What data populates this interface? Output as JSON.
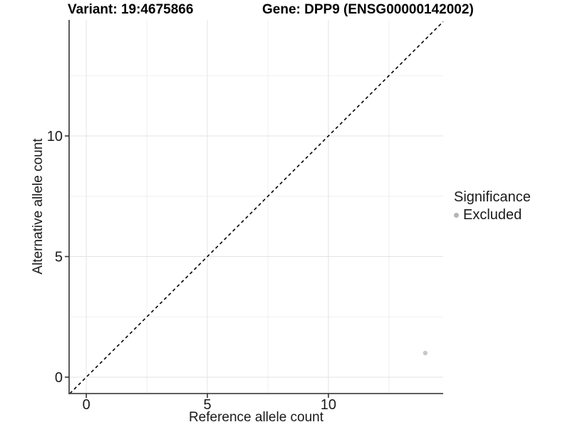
{
  "chart_data": {
    "type": "scatter",
    "titles": {
      "left": "Variant: 19:4675866",
      "right": "Gene: DPP9 (ENSG00000142002)"
    },
    "xlabel": "Reference allele count",
    "ylabel": "Alternative allele count",
    "xlim": [
      -0.71,
      14.74
    ],
    "ylim": [
      -0.68,
      14.81
    ],
    "x_major_ticks": [
      0,
      5,
      10
    ],
    "y_major_ticks": [
      0,
      5,
      10
    ],
    "x_minor_ticks": [
      2.5,
      7.5,
      12.5
    ],
    "y_minor_ticks": [
      2.5,
      7.5,
      12.5
    ],
    "points": [
      {
        "x": 14,
        "y": 1,
        "significance": "Excluded"
      }
    ],
    "point_color": "#c8c8c8",
    "point_radius_px": 3.2,
    "identity_line": {
      "slope": 1,
      "intercept": 0,
      "style": "dashed",
      "color": "#000000"
    },
    "grid": {
      "major_color": "#e3e3e3",
      "minor_color": "#efefef"
    },
    "axis_line_color": "#4a4a4a",
    "tick_color": "#333333",
    "tick_label_color": "#1a1a1a",
    "legend": {
      "title": "Significance",
      "position": "right",
      "entries": [
        {
          "label": "Excluded",
          "color": "#b5b5b5"
        }
      ]
    }
  }
}
